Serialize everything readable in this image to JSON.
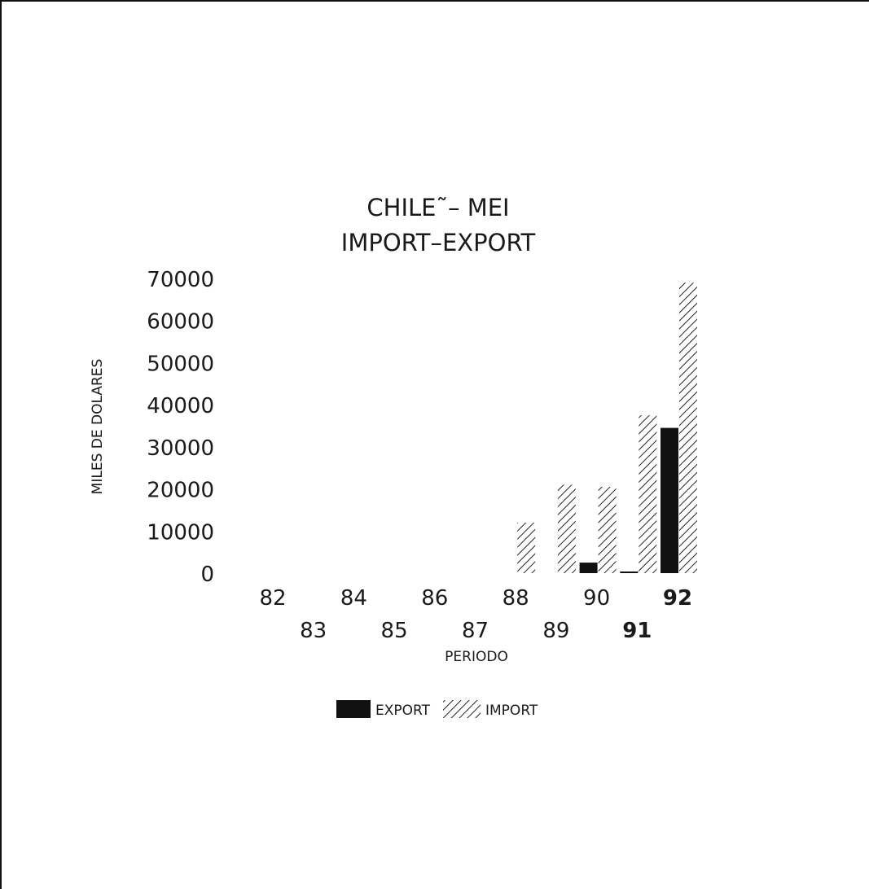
{
  "chart_data": {
    "type": "bar",
    "title": [
      "CHILE˜– MEI",
      "IMPORT–EXPORT"
    ],
    "xlabel": "PERIODO",
    "ylabel": "MILES DE DOLARES",
    "ylim": [
      0,
      70000
    ],
    "yticks": [
      "0",
      "10000",
      "20000",
      "30000",
      "40000",
      "50000",
      "60000",
      "70000"
    ],
    "categories": [
      "82",
      "83",
      "84",
      "85",
      "86",
      "87",
      "88",
      "89",
      "90",
      "91",
      "92"
    ],
    "series": [
      {
        "name": "EXPORT",
        "pattern": "solid",
        "values": [
          0,
          0,
          0,
          0,
          0,
          0,
          0,
          0,
          2500,
          300,
          34500
        ]
      },
      {
        "name": "IMPORT",
        "pattern": "hatched",
        "values": [
          0,
          0,
          0,
          0,
          0,
          0,
          12000,
          21000,
          20500,
          37500,
          69000
        ]
      }
    ],
    "grid": false,
    "legend": "bottom-center"
  }
}
